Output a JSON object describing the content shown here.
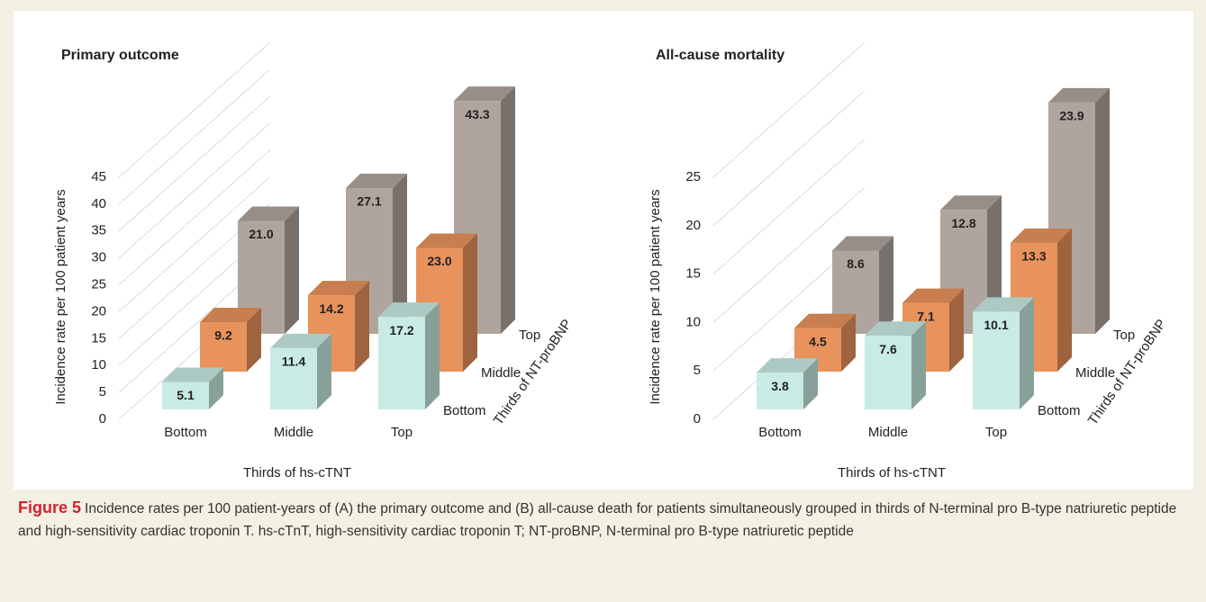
{
  "chart_data": [
    {
      "type": "bar3d",
      "title": "Primary outcome",
      "x_label": "Thirds of hs-cTNT",
      "y_label": "Incidence rate per 100 patient years",
      "depth_label": "Thirds of NT-proBNP",
      "categories": [
        "Bottom",
        "Middle",
        "Top"
      ],
      "series": [
        {
          "name": "Bottom",
          "color": "#c8ebe3",
          "values": [
            5.1,
            11.4,
            17.2
          ],
          "value_labels": [
            "5.1",
            "11.4",
            "17.2"
          ]
        },
        {
          "name": "Middle",
          "color": "#e8925c",
          "values": [
            9.2,
            14.2,
            23.0
          ],
          "value_labels": [
            "9.2",
            "14.2",
            "23.0"
          ]
        },
        {
          "name": "Top",
          "color": "#b0a59e",
          "values": [
            21.0,
            27.1,
            43.3
          ],
          "value_labels": [
            "21.0",
            "27.1",
            "43.3"
          ]
        }
      ],
      "ylim": [
        0,
        45
      ],
      "yticks": [
        0,
        5,
        10,
        15,
        20,
        25,
        30,
        35,
        40,
        45
      ],
      "grid": true
    },
    {
      "type": "bar3d",
      "title": "All-cause mortality",
      "x_label": "Thirds of hs-cTNT",
      "y_label": "Incidence rate per 100 patient years",
      "depth_label": "Thirds of NT-proBNP",
      "categories": [
        "Bottom",
        "Middle",
        "Top"
      ],
      "series": [
        {
          "name": "Bottom",
          "color": "#c8ebe3",
          "values": [
            3.8,
            7.6,
            10.1
          ],
          "value_labels": [
            "3.8",
            "7.6",
            "10.1"
          ]
        },
        {
          "name": "Middle",
          "color": "#e8925c",
          "values": [
            4.5,
            7.1,
            13.3
          ],
          "value_labels": [
            "4.5",
            "7.1",
            "13.3"
          ]
        },
        {
          "name": "Top",
          "color": "#b0a59e",
          "values": [
            8.6,
            12.8,
            23.9
          ],
          "value_labels": [
            "8.6",
            "12.8",
            "23.9"
          ]
        }
      ],
      "ylim": [
        0,
        25
      ],
      "yticks": [
        0,
        5,
        10,
        15,
        20,
        25
      ],
      "grid": true
    }
  ],
  "caption": {
    "label": "Figure 5",
    "text": "Incidence rates per 100 patient-years of (A) the primary outcome and (B) all-cause death for patients simultaneously grouped in thirds of N-terminal pro B-type natriuretic peptide and high-sensitivity cardiac troponin T. hs-cTnT, high-sensitivity cardiac troponin T; NT-proBNP, N-terminal pro B-type natriuretic peptide"
  }
}
